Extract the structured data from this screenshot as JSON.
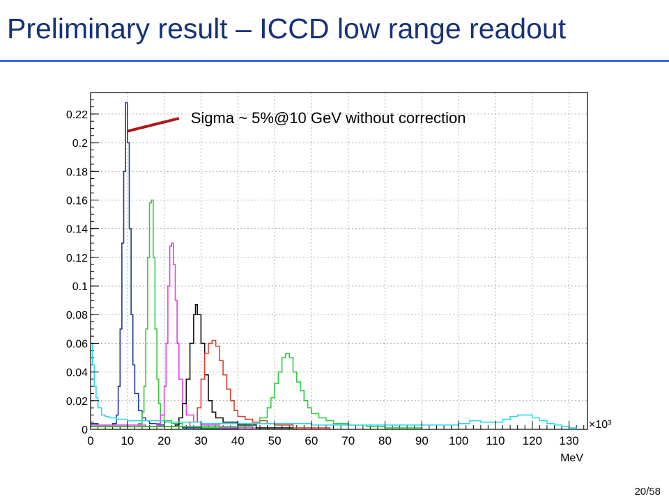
{
  "slide": {
    "title": "Preliminary result – ICCD low range readout",
    "page_number": "20/58",
    "title_color": "#16317a",
    "rule_color": "#3a66d8"
  },
  "chart_data": {
    "type": "line",
    "title": "",
    "xlabel": "MeV",
    "x_multiplier_label": "×10³",
    "ylabel": "",
    "xlim": [
      0,
      135
    ],
    "ylim": [
      0,
      0.235
    ],
    "x_ticks": [
      0,
      10,
      20,
      30,
      40,
      50,
      60,
      70,
      80,
      90,
      100,
      110,
      120,
      130
    ],
    "y_ticks": [
      0,
      0.02,
      0.04,
      0.06,
      0.08,
      0.1,
      0.12,
      0.14,
      0.16,
      0.18,
      0.2,
      0.22
    ],
    "y_tick_labels": [
      "0",
      "0.02",
      "0.04",
      "0.06",
      "0.08",
      "0.1",
      "0.12",
      "0.14",
      "0.16",
      "0.18",
      "0.2",
      "0.22"
    ],
    "grid": true,
    "annotation": {
      "text": "Sigma ~ 5%@10 GeV without correction",
      "color": "#b01818",
      "arrow_from": [
        24,
        0.217
      ],
      "arrow_to": [
        10,
        0.208
      ]
    },
    "series": [
      {
        "color": "#1c3aa0",
        "points": [
          [
            0,
            0.004
          ],
          [
            2,
            0.003
          ],
          [
            4,
            0.003
          ],
          [
            6,
            0.004
          ],
          [
            7,
            0.01
          ],
          [
            7.5,
            0.03
          ],
          [
            8,
            0.07
          ],
          [
            8.5,
            0.13
          ],
          [
            9,
            0.18
          ],
          [
            9.5,
            0.228
          ],
          [
            10,
            0.2
          ],
          [
            10.5,
            0.14
          ],
          [
            11,
            0.08
          ],
          [
            11.5,
            0.045
          ],
          [
            12,
            0.025
          ],
          [
            13,
            0.013
          ],
          [
            14,
            0.008
          ],
          [
            15,
            0.006
          ],
          [
            16,
            0.004
          ],
          [
            18,
            0.003
          ],
          [
            20,
            0.002
          ],
          [
            25,
            0.001
          ],
          [
            30,
            0.0005
          ],
          [
            40,
            0
          ]
        ]
      },
      {
        "color": "#3ec43e",
        "points": [
          [
            0,
            0.003
          ],
          [
            10,
            0.002
          ],
          [
            13,
            0.004
          ],
          [
            14,
            0.012
          ],
          [
            14.5,
            0.03
          ],
          [
            15,
            0.07
          ],
          [
            15.5,
            0.12
          ],
          [
            16,
            0.158
          ],
          [
            16.5,
            0.16
          ],
          [
            17,
            0.12
          ],
          [
            17.5,
            0.07
          ],
          [
            18,
            0.035
          ],
          [
            18.5,
            0.018
          ],
          [
            19,
            0.01
          ],
          [
            20,
            0.006
          ],
          [
            22,
            0.004
          ],
          [
            25,
            0.002
          ],
          [
            30,
            0.001
          ],
          [
            40,
            0
          ]
        ]
      },
      {
        "color": "#e640e6",
        "points": [
          [
            0,
            0.003
          ],
          [
            15,
            0.002
          ],
          [
            18,
            0.004
          ],
          [
            19,
            0.01
          ],
          [
            20,
            0.03
          ],
          [
            20.5,
            0.06
          ],
          [
            21,
            0.1
          ],
          [
            21.5,
            0.128
          ],
          [
            22,
            0.13
          ],
          [
            22.5,
            0.115
          ],
          [
            23,
            0.09
          ],
          [
            23.5,
            0.06
          ],
          [
            24,
            0.035
          ],
          [
            25,
            0.018
          ],
          [
            26,
            0.01
          ],
          [
            28,
            0.005
          ],
          [
            30,
            0.003
          ],
          [
            35,
            0.001
          ],
          [
            45,
            0
          ]
        ]
      },
      {
        "color": "#111111",
        "points": [
          [
            0,
            0.002
          ],
          [
            20,
            0.002
          ],
          [
            23,
            0.003
          ],
          [
            24,
            0.008
          ],
          [
            25,
            0.018
          ],
          [
            26,
            0.035
          ],
          [
            27,
            0.06
          ],
          [
            28,
            0.08
          ],
          [
            28.5,
            0.087
          ],
          [
            29,
            0.08
          ],
          [
            30,
            0.06
          ],
          [
            31,
            0.038
          ],
          [
            32,
            0.02
          ],
          [
            33,
            0.012
          ],
          [
            34,
            0.008
          ],
          [
            36,
            0.005
          ],
          [
            40,
            0.003
          ],
          [
            45,
            0.001
          ],
          [
            55,
            0
          ]
        ]
      },
      {
        "color": "#e04030",
        "points": [
          [
            0,
            0.002
          ],
          [
            25,
            0.002
          ],
          [
            27,
            0.005
          ],
          [
            29,
            0.015
          ],
          [
            30,
            0.035
          ],
          [
            31,
            0.053
          ],
          [
            32,
            0.06
          ],
          [
            33,
            0.062
          ],
          [
            34,
            0.058
          ],
          [
            35,
            0.048
          ],
          [
            36,
            0.038
          ],
          [
            37,
            0.028
          ],
          [
            38,
            0.02
          ],
          [
            39,
            0.013
          ],
          [
            40,
            0.009
          ],
          [
            42,
            0.007
          ],
          [
            44,
            0.005
          ],
          [
            46,
            0.006
          ],
          [
            48,
            0.004
          ],
          [
            50,
            0.003
          ],
          [
            55,
            0.001
          ],
          [
            65,
            0
          ]
        ]
      },
      {
        "color": "#2ecc40",
        "points": [
          [
            0,
            0.002
          ],
          [
            40,
            0.002
          ],
          [
            44,
            0.004
          ],
          [
            46,
            0.008
          ],
          [
            48,
            0.015
          ],
          [
            49,
            0.022
          ],
          [
            50,
            0.032
          ],
          [
            51,
            0.04
          ],
          [
            52,
            0.05
          ],
          [
            53,
            0.053
          ],
          [
            54,
            0.05
          ],
          [
            55,
            0.04
          ],
          [
            56,
            0.033
          ],
          [
            57,
            0.027
          ],
          [
            58,
            0.02
          ],
          [
            59,
            0.015
          ],
          [
            60,
            0.011
          ],
          [
            62,
            0.008
          ],
          [
            64,
            0.006
          ],
          [
            66,
            0.004
          ],
          [
            70,
            0.003
          ],
          [
            75,
            0.002
          ],
          [
            80,
            0.001
          ],
          [
            90,
            0
          ]
        ]
      },
      {
        "color": "#2ed8e8",
        "points": [
          [
            0,
            0.06
          ],
          [
            0.5,
            0.045
          ],
          [
            1,
            0.03
          ],
          [
            1.5,
            0.022
          ],
          [
            2,
            0.015
          ],
          [
            3,
            0.01
          ],
          [
            4,
            0.009
          ],
          [
            5,
            0.008
          ],
          [
            7,
            0.007
          ],
          [
            10,
            0.006
          ],
          [
            15,
            0.006
          ],
          [
            20,
            0.005
          ],
          [
            30,
            0.004
          ],
          [
            40,
            0.004
          ],
          [
            50,
            0.004
          ],
          [
            60,
            0.003
          ],
          [
            70,
            0.003
          ],
          [
            80,
            0.003
          ],
          [
            90,
            0.003
          ],
          [
            95,
            0.003
          ],
          [
            100,
            0.004
          ],
          [
            103,
            0.006
          ],
          [
            106,
            0.005
          ],
          [
            110,
            0.005
          ],
          [
            112,
            0.007
          ],
          [
            114,
            0.009
          ],
          [
            116,
            0.01
          ],
          [
            118,
            0.01
          ],
          [
            120,
            0.008
          ],
          [
            122,
            0.006
          ],
          [
            124,
            0.004
          ],
          [
            126,
            0.003
          ],
          [
            128,
            0.002
          ],
          [
            130,
            0.001
          ],
          [
            132,
            0
          ]
        ]
      }
    ]
  }
}
